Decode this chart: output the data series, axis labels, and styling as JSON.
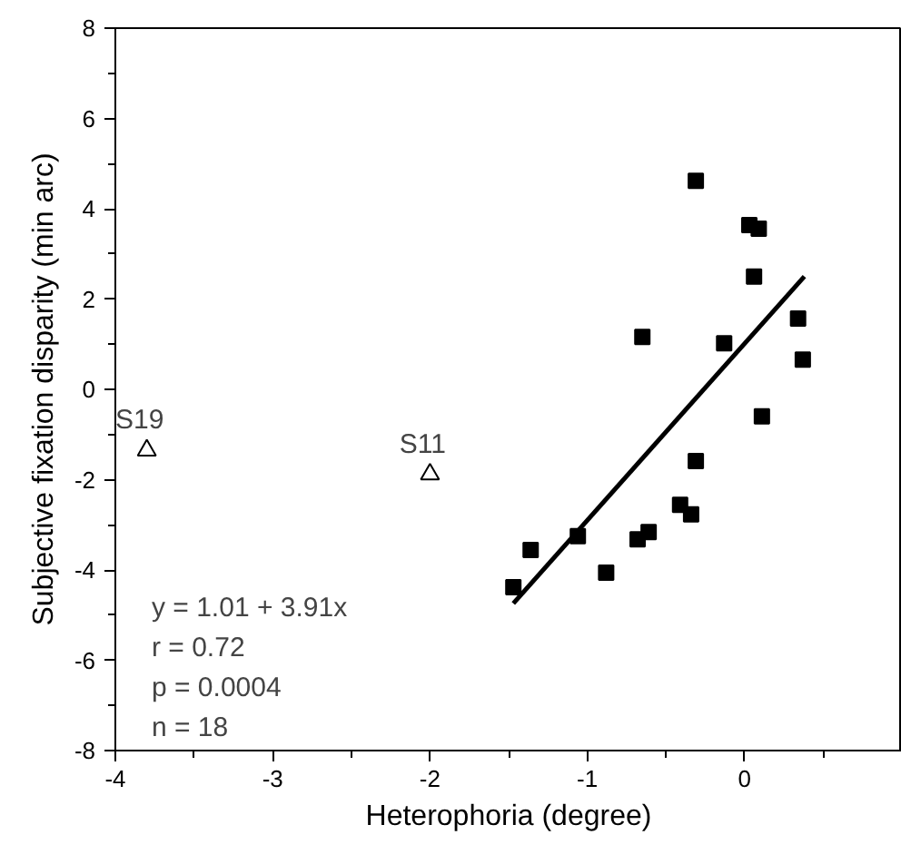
{
  "chart_data": {
    "type": "scatter",
    "xlabel": "Heterophoria (degree)",
    "ylabel": "Subjective fixation disparity (min arc)",
    "xlim": [
      -4,
      1
    ],
    "ylim": [
      -8,
      8
    ],
    "xticks": [
      -4,
      -3,
      -2,
      -1,
      0
    ],
    "yticks": [
      -8,
      -6,
      -4,
      -2,
      0,
      2,
      4,
      6,
      8
    ],
    "grid": false,
    "series": [
      {
        "marker": "square",
        "color": "#000000",
        "x": [
          -0.31,
          0.03,
          0.09,
          0.06,
          0.34,
          0.37,
          -0.65,
          -0.13,
          0.11,
          -0.31,
          -0.41,
          -0.34,
          -0.61,
          -0.68,
          -1.06,
          -1.36,
          -1.47,
          -0.88
        ],
        "values": [
          4.62,
          3.64,
          3.56,
          2.5,
          1.57,
          0.66,
          1.16,
          1.02,
          -0.6,
          -1.59,
          -2.56,
          -2.77,
          -3.16,
          -3.32,
          -3.25,
          -3.56,
          -4.38,
          -4.06
        ]
      },
      {
        "marker": "triangle",
        "color": "#000000",
        "x": [
          -3.8,
          -2.0
        ],
        "values": [
          -1.35,
          -1.88
        ]
      },
      {
        "type": "line",
        "marker": "none",
        "line_style": "solid",
        "color": "#000000",
        "x": [
          -1.47,
          0.38
        ],
        "values": [
          -4.74,
          2.5
        ]
      }
    ],
    "annotations": [
      {
        "text": "S19",
        "x": -3.8,
        "y": -1.35
      },
      {
        "text": "S11",
        "x": -2.0,
        "y": -1.88
      },
      "y = 1.01 + 3.91x",
      "r = 0.72",
      "p = 0.0004",
      "n = 18"
    ]
  }
}
